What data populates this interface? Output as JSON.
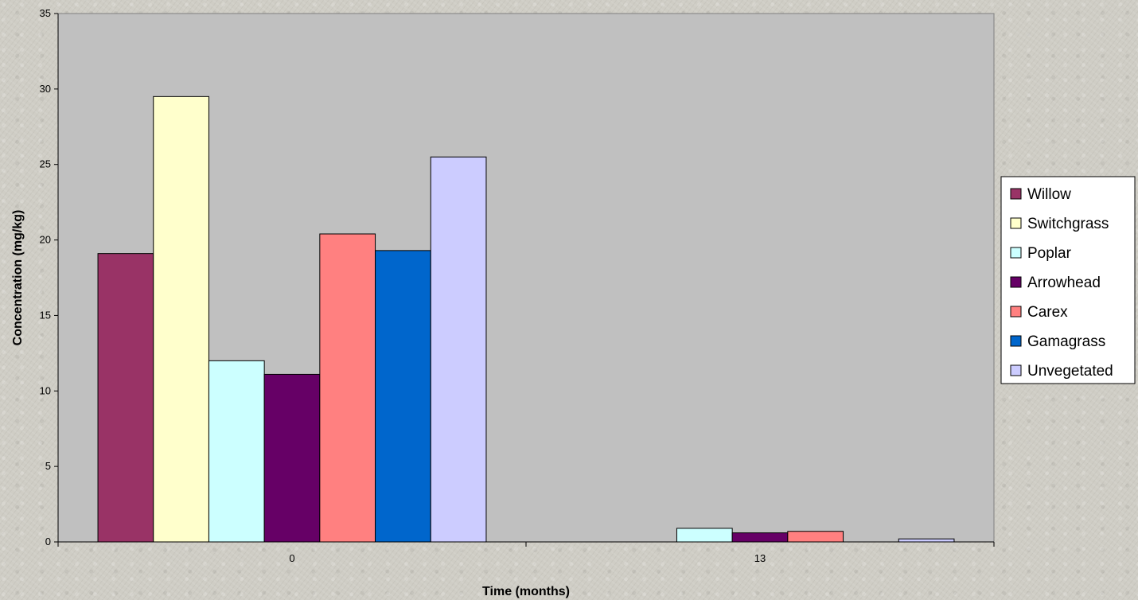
{
  "chart_data": {
    "type": "bar",
    "title": "",
    "xlabel": "Time (months)",
    "ylabel": "Concentration (mg/kg)",
    "ylim": [
      0,
      35
    ],
    "yticks": [
      0,
      5,
      10,
      15,
      20,
      25,
      30,
      35
    ],
    "categories": [
      "0",
      "13"
    ],
    "grid": false,
    "legend": "right",
    "plot_background": "#c0c0c0",
    "series": [
      {
        "name": "Willow",
        "color": "#993366",
        "values": [
          19.1,
          0
        ]
      },
      {
        "name": "Switchgrass",
        "color": "#ffffcc",
        "values": [
          29.5,
          0
        ]
      },
      {
        "name": "Poplar",
        "color": "#ccffff",
        "values": [
          12.0,
          0.9
        ]
      },
      {
        "name": "Arrowhead",
        "color": "#660066",
        "values": [
          11.1,
          0.6
        ]
      },
      {
        "name": "Carex",
        "color": "#ff8080",
        "values": [
          20.4,
          0.7
        ]
      },
      {
        "name": "Gamagrass",
        "color": "#0066cc",
        "values": [
          19.3,
          0
        ]
      },
      {
        "name": "Unvegetated",
        "color": "#ccccff",
        "values": [
          25.5,
          0.2
        ]
      }
    ]
  }
}
